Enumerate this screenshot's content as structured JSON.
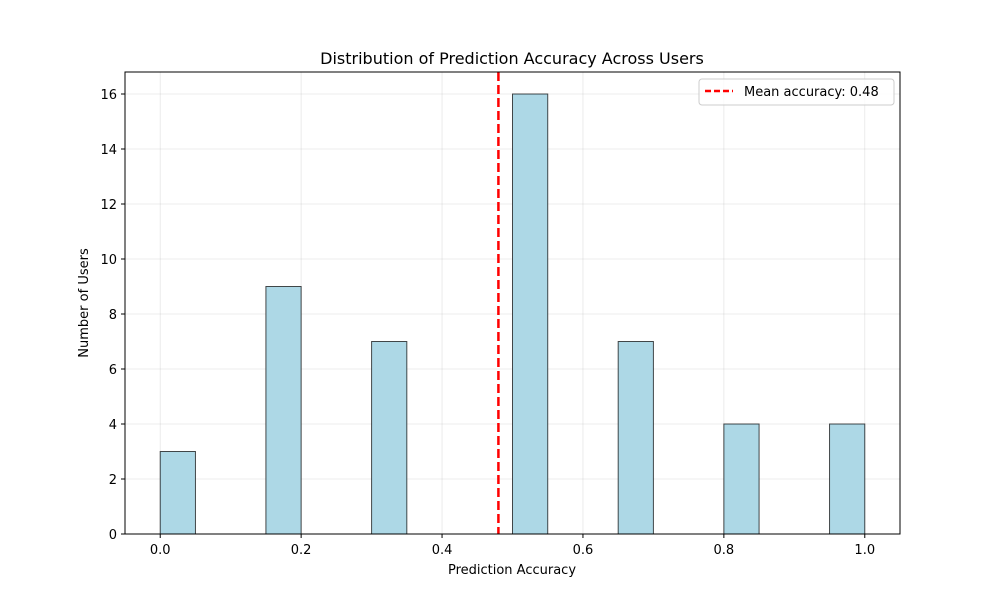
{
  "chart_data": {
    "type": "bar",
    "title": "Distribution of Prediction Accuracy Across Users",
    "xlabel": "Prediction Accuracy",
    "ylabel": "Number of Users",
    "xlim": [
      -0.05,
      1.05
    ],
    "ylim": [
      0,
      16.8
    ],
    "xticks": [
      0.0,
      0.2,
      0.4,
      0.6,
      0.8,
      1.0
    ],
    "xtick_labels": [
      "0.0",
      "0.2",
      "0.4",
      "0.6",
      "0.8",
      "1.0"
    ],
    "yticks": [
      0,
      2,
      4,
      6,
      8,
      10,
      12,
      14,
      16
    ],
    "ytick_labels": [
      "0",
      "2",
      "4",
      "6",
      "8",
      "10",
      "12",
      "14",
      "16"
    ],
    "bin_width": 0.05,
    "bins": [
      {
        "start": 0.0,
        "value": 3
      },
      {
        "start": 0.15,
        "value": 9
      },
      {
        "start": 0.3,
        "value": 7
      },
      {
        "start": 0.5,
        "value": 16
      },
      {
        "start": 0.65,
        "value": 7
      },
      {
        "start": 0.8,
        "value": 4
      },
      {
        "start": 0.95,
        "value": 4
      }
    ],
    "mean_line": {
      "value": 0.48,
      "label": "Mean accuracy: 0.48",
      "color": "#ff0000"
    },
    "bar_color": "#add8e6",
    "bar_edge_color": "#000000",
    "grid": true,
    "legend_position": "top-right"
  }
}
